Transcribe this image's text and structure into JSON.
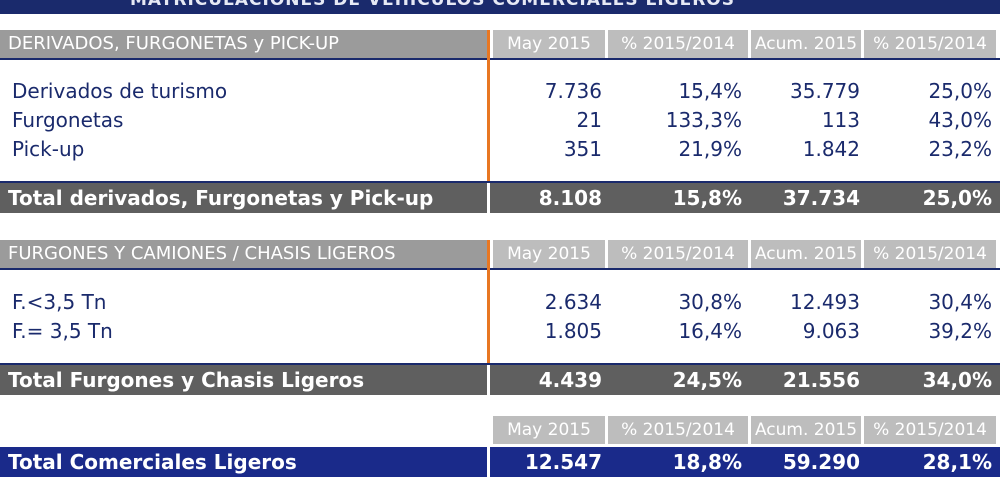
{
  "banner": "MATRICULACIONES DE VEHÍCULOS COMERCIALES LIGEROS",
  "columns": [
    "May 2015",
    "% 2015/2014",
    "Acum. 2015",
    "% 2015/2014"
  ],
  "section1": {
    "title": "DERIVADOS, FURGONETAS y PICK-UP",
    "rows": [
      {
        "label": "Derivados de turismo",
        "may": "7.736",
        "pct": "15,4%",
        "acum": "35.779",
        "pct_acum": "25,0%"
      },
      {
        "label": "Furgonetas",
        "may": "21",
        "pct": "133,3%",
        "acum": "113",
        "pct_acum": "43,0%"
      },
      {
        "label": "Pick-up",
        "may": "351",
        "pct": "21,9%",
        "acum": "1.842",
        "pct_acum": "23,2%"
      }
    ],
    "total": {
      "label": "Total derivados, Furgonetas y Pick-up",
      "may": "8.108",
      "pct": "15,8%",
      "acum": "37.734",
      "pct_acum": "25,0%"
    }
  },
  "section2": {
    "title": "FURGONES Y CAMIONES / CHASIS LIGEROS",
    "rows": [
      {
        "label": "F.<3,5 Tn",
        "may": "2.634",
        "pct": "30,8%",
        "acum": "12.493",
        "pct_acum": "30,4%"
      },
      {
        "label": "F.= 3,5 Tn",
        "may": "1.805",
        "pct": "16,4%",
        "acum": "9.063",
        "pct_acum": "39,2%"
      }
    ],
    "total": {
      "label": "Total Furgones y Chasis Ligeros",
      "may": "4.439",
      "pct": "24,5%",
      "acum": "21.556",
      "pct_acum": "34,0%"
    }
  },
  "grand_total": {
    "label": "Total Comerciales Ligeros",
    "may": "12.547",
    "pct": "18,8%",
    "acum": "59.290",
    "pct_acum": "28,1%"
  },
  "colors": {
    "navy": "#1a2a6c",
    "accent_orange": "#e87722",
    "header_gray": "#9b9b9b",
    "total_gray": "#5f5f5f"
  }
}
